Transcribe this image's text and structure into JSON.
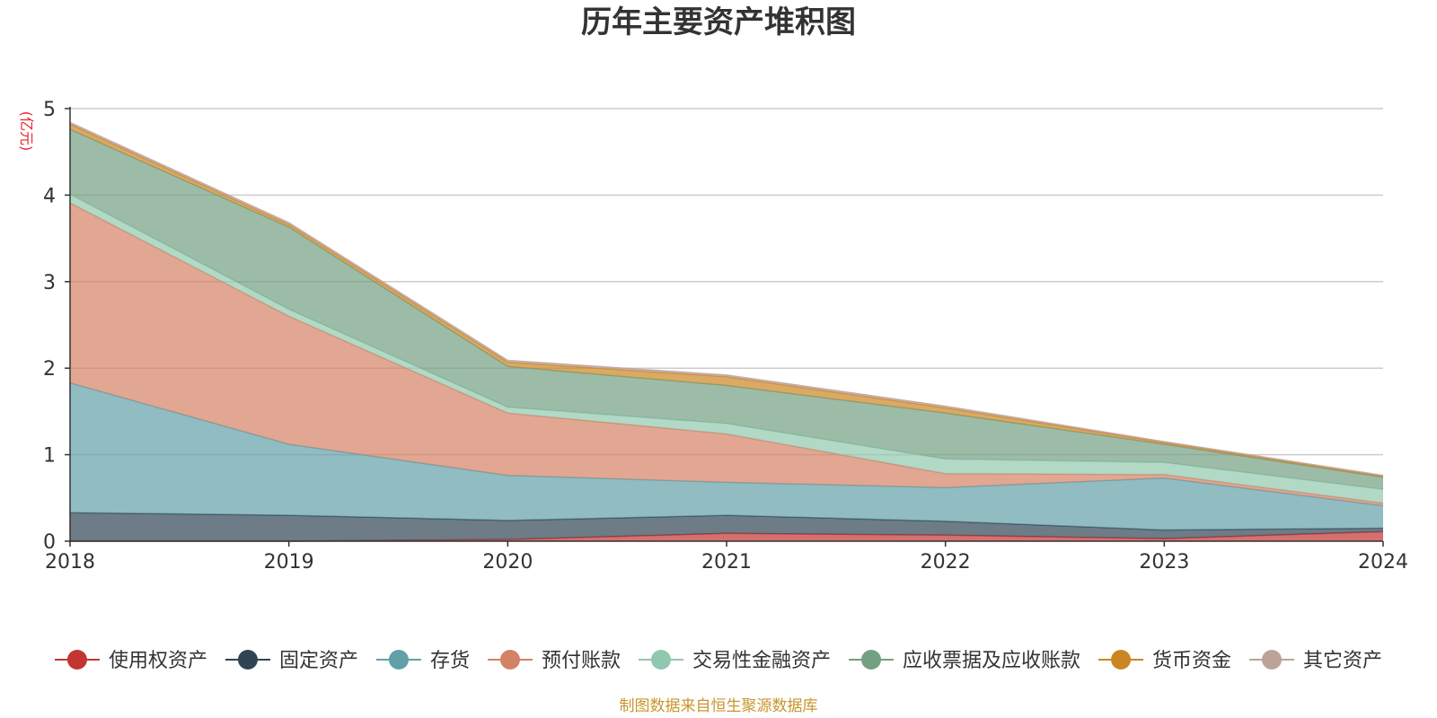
{
  "chart_data": {
    "type": "area",
    "title": "历年主要资产堆积图",
    "ylabel": "亿元",
    "source": "制图数据来自恒生聚源数据库",
    "x": [
      "2018",
      "2019",
      "2020",
      "2021",
      "2022",
      "2023",
      "2024"
    ],
    "ylim": [
      0,
      5
    ],
    "yticks": [
      "0",
      "1",
      "2",
      "3",
      "4",
      "5"
    ],
    "grid": true,
    "stacked": true,
    "legend_position": "bottom",
    "series": [
      {
        "name": "使用权资产",
        "color": "#c23531",
        "values": [
          0,
          0,
          0.02,
          0.09,
          0.07,
          0.03,
          0.11
        ]
      },
      {
        "name": "固定资产",
        "color": "#2f4554",
        "values": [
          0.33,
          0.3,
          0.22,
          0.21,
          0.16,
          0.1,
          0.04
        ]
      },
      {
        "name": "存货",
        "color": "#61a0a8",
        "values": [
          1.5,
          0.82,
          0.52,
          0.38,
          0.39,
          0.6,
          0.26
        ]
      },
      {
        "name": "预付账款",
        "color": "#d48265",
        "values": [
          2.08,
          1.48,
          0.72,
          0.56,
          0.16,
          0.04,
          0.03
        ]
      },
      {
        "name": "交易性金融资产",
        "color": "#91c7ae",
        "values": [
          0.1,
          0.08,
          0.07,
          0.12,
          0.17,
          0.14,
          0.16
        ]
      },
      {
        "name": "应收票据及应收账款",
        "color": "#749f83",
        "values": [
          0.75,
          0.95,
          0.47,
          0.44,
          0.53,
          0.21,
          0.14
        ]
      },
      {
        "name": "货币资金",
        "color": "#ca8622",
        "values": [
          0.06,
          0.03,
          0.05,
          0.1,
          0.06,
          0.02,
          0.01
        ]
      },
      {
        "name": "其它资产",
        "color": "#bda29a",
        "values": [
          0.02,
          0.02,
          0.02,
          0.02,
          0.02,
          0.01,
          0.01
        ]
      }
    ]
  }
}
